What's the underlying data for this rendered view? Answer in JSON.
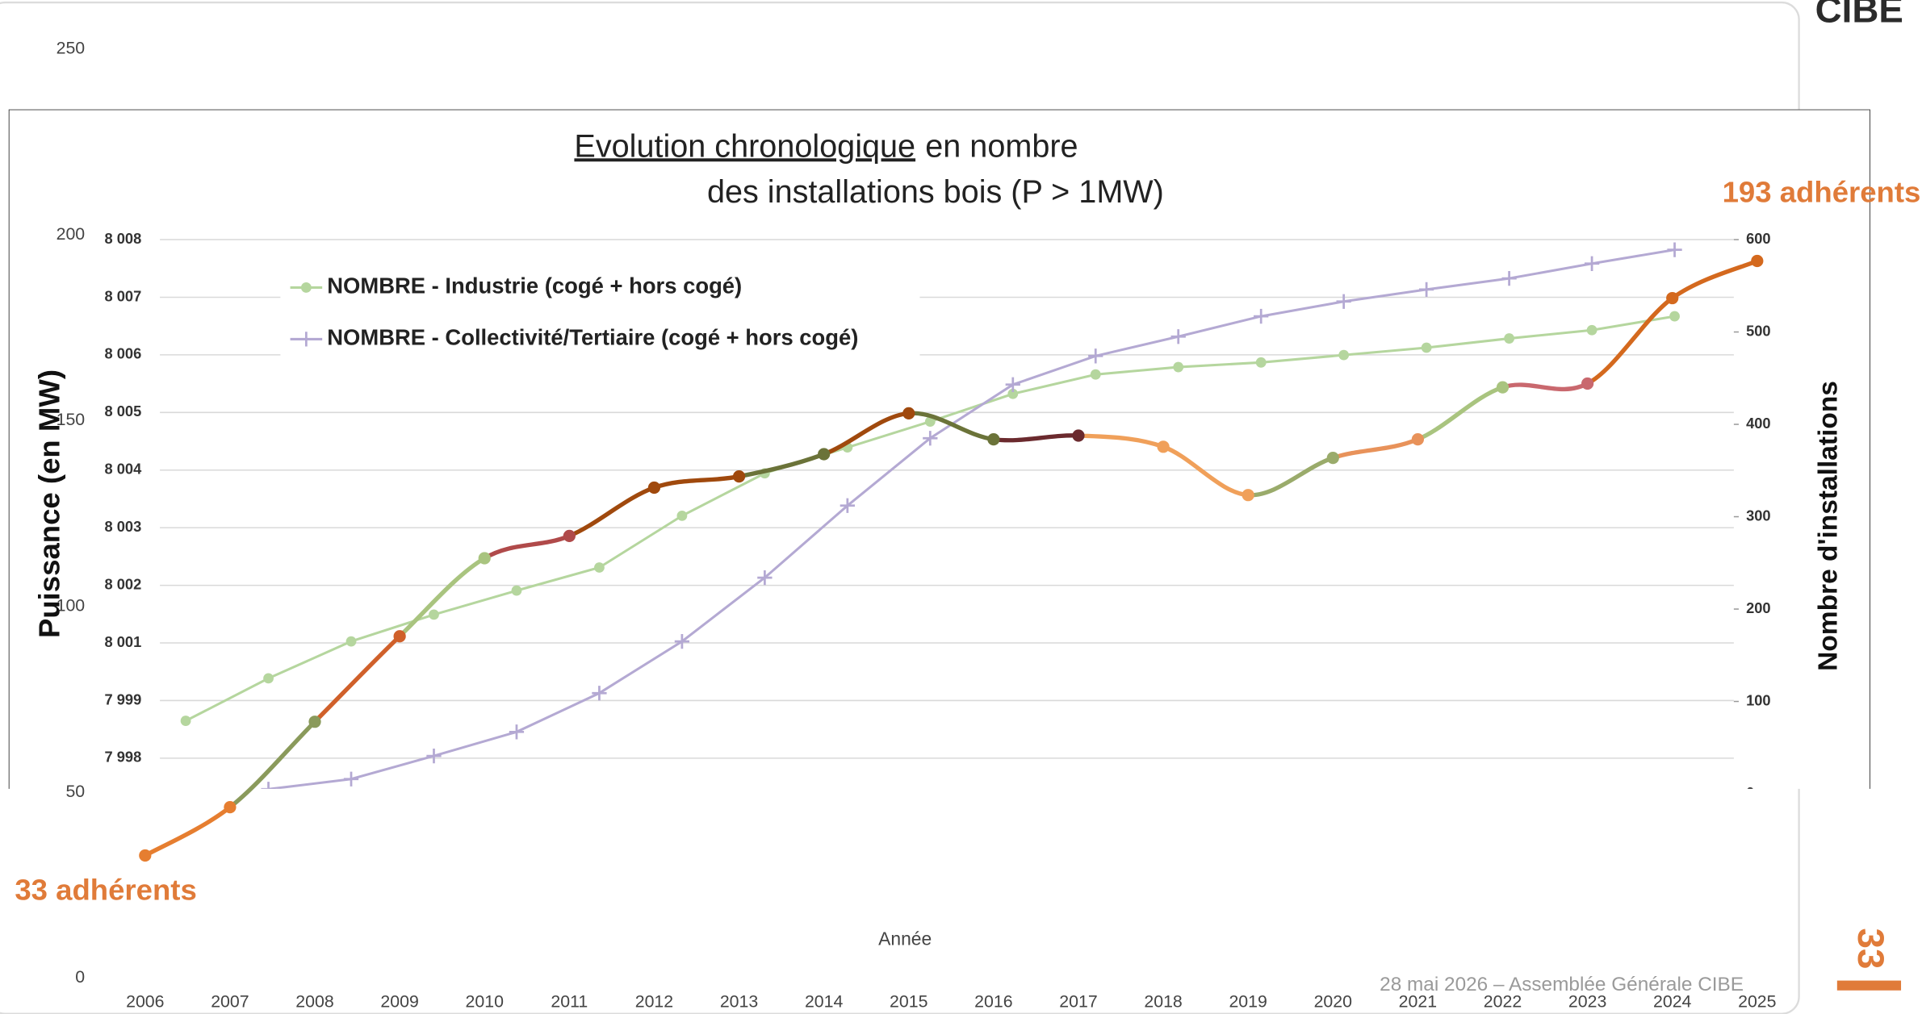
{
  "header": {
    "logo": "CIBE"
  },
  "footer": {
    "date_text": "28 mai 2026 – Assemblée Générale CIBE",
    "page_number": "33"
  },
  "chart_data": [
    {
      "type": "line",
      "ylabel": "Puissance (en MW)",
      "xlabel": "Année",
      "categories": [
        "2006",
        "2007",
        "2008",
        "2009",
        "2010",
        "2011",
        "2012",
        "2013",
        "2014",
        "2015",
        "2016",
        "2017",
        "2018",
        "2019",
        "2020",
        "2021",
        "2022",
        "2023",
        "2024",
        "2025"
      ],
      "series": [
        {
          "values": [
            33,
            46,
            69,
            92,
            113,
            119,
            132,
            135,
            141,
            152,
            145,
            146,
            143,
            130,
            140,
            145,
            159,
            160,
            183,
            193
          ],
          "point_colors": [
            "#e67e30",
            "#e67e30",
            "#8a9a5b",
            "#d0602a",
            "#a9c47f",
            "#b04a4a",
            "#a0490d",
            "#a0490d",
            "#6b7339",
            "#a0490d",
            "#6b7339",
            "#6b2a2e",
            "#f0a05a",
            "#f0a05a",
            "#9aab6b",
            "#e8925a",
            "#a9c47f",
            "#c9686e",
            "#d4691e",
            "#d4691e"
          ]
        }
      ],
      "ylim": [
        0,
        250
      ],
      "yticks": [
        0,
        50,
        100,
        150,
        200,
        250
      ],
      "annotations": [
        "33 adhérents",
        "193 adhérents"
      ],
      "annotation_color": "#e07b39"
    },
    {
      "type": "line",
      "title_parts": [
        "Evolution chronologique",
        "en nombre",
        "des installations bois (P > 1MW)"
      ],
      "y2label": "Nombre d'installations",
      "ycategories": [
        "8 008",
        "8 007",
        "8 006",
        "8 005",
        "8 004",
        "8 003",
        "8 002",
        "8 001",
        "7 999",
        "7 998"
      ],
      "categories": [
        null,
        null,
        null,
        null,
        null,
        null,
        null,
        null,
        null,
        null,
        null,
        null,
        null,
        null,
        null,
        null,
        null,
        null,
        null
      ],
      "series": [
        {
          "name": "NOMBRE - Industrie  (cogé + hors cogé)",
          "color": "#b5d69e",
          "marker": "circle",
          "axis": "y2",
          "values": [
            79,
            125,
            165,
            194,
            220,
            245,
            301,
            347,
            375,
            403,
            433,
            454,
            462,
            467,
            475,
            483,
            493,
            502,
            517
          ]
        },
        {
          "name": "NOMBRE - Collectivité/Tertiaire (cogé + hors cogé)",
          "color": "#b4a9d3",
          "marker": "plus",
          "axis": "y2",
          "values": [
            null,
            5,
            16,
            41,
            67,
            109,
            165,
            234,
            312,
            385,
            443,
            474,
            495,
            517,
            533,
            546,
            558,
            574,
            589
          ]
        }
      ],
      "y2lim": [
        0,
        600
      ],
      "y2ticks": [
        0,
        100,
        200,
        300,
        400,
        500,
        600
      ],
      "grid": true
    }
  ]
}
